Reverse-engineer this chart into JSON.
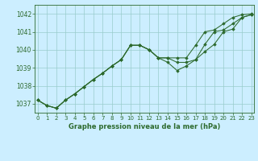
{
  "x": [
    0,
    1,
    2,
    3,
    4,
    5,
    6,
    7,
    8,
    9,
    10,
    11,
    12,
    13,
    14,
    15,
    16,
    17,
    18,
    19,
    20,
    21,
    22,
    23
  ],
  "line1": [
    1037.2,
    1036.9,
    1036.75,
    1037.2,
    1037.55,
    1037.95,
    1038.35,
    1038.7,
    1039.1,
    1039.45,
    1040.25,
    1040.25,
    1040.0,
    1039.55,
    1039.55,
    1039.55,
    1039.55,
    1040.25,
    1041.0,
    1041.1,
    1041.45,
    1041.8,
    1041.95,
    1042.0
  ],
  "line2": [
    1037.2,
    1036.9,
    1036.75,
    1037.2,
    1037.55,
    1037.95,
    1038.35,
    1038.7,
    1039.1,
    1039.45,
    1040.25,
    1040.25,
    1040.0,
    1039.55,
    1039.55,
    1039.3,
    1039.3,
    1039.45,
    1039.9,
    1040.3,
    1041.0,
    1041.15,
    1041.8,
    1041.95
  ],
  "line3": [
    1037.2,
    1036.9,
    1036.75,
    1037.2,
    1037.55,
    1037.95,
    1038.35,
    1038.7,
    1039.1,
    1039.45,
    1040.25,
    1040.25,
    1040.0,
    1039.55,
    1039.3,
    1038.85,
    1039.1,
    1039.45,
    1040.3,
    1041.0,
    1041.1,
    1041.45,
    1041.8,
    1041.95
  ],
  "ylim": [
    1036.5,
    1042.5
  ],
  "yticks": [
    1037,
    1038,
    1039,
    1040,
    1041,
    1042
  ],
  "xticks": [
    0,
    1,
    2,
    3,
    4,
    5,
    6,
    7,
    8,
    9,
    10,
    11,
    12,
    13,
    14,
    15,
    16,
    17,
    18,
    19,
    20,
    21,
    22,
    23
  ],
  "line_color": "#2d6a2d",
  "marker_color": "#2d6a2d",
  "bg_color": "#cceeff",
  "grid_color": "#99cccc",
  "xlabel": "Graphe pression niveau de la mer (hPa)",
  "xlabel_color": "#2d6a2d",
  "tick_color": "#2d6a2d"
}
